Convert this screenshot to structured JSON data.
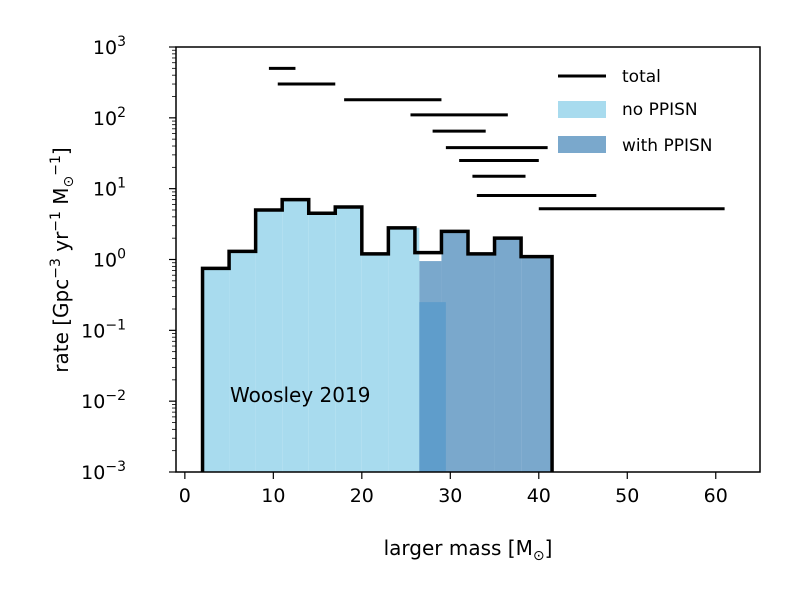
{
  "chart_data": {
    "type": "histogram",
    "xlabel": "larger mass [M",
    "xlabel_sub": "⊙",
    "xlabel_close": "]",
    "ylabel": "rate [Gpc",
    "ylabel_sup1": "−3",
    "ylabel_mid": " yr",
    "ylabel_sup2": "−1",
    "ylabel_end": " M",
    "ylabel_sub": "⊙",
    "ylabel_sup3": "−1",
    "ylabel_close": "]",
    "xlim": [
      -1,
      65
    ],
    "ylim": [
      0.001,
      1000
    ],
    "yscale": "log",
    "x_ticks": [
      0,
      10,
      20,
      30,
      40,
      50,
      60
    ],
    "y_ticks": [
      {
        "exp": -3,
        "base": "10",
        "sup": "−3"
      },
      {
        "exp": -2,
        "base": "10",
        "sup": "−2"
      },
      {
        "exp": -1,
        "base": "10",
        "sup": "−1"
      },
      {
        "exp": 0,
        "base": "10",
        "sup": "0"
      },
      {
        "exp": 1,
        "base": "10",
        "sup": "1"
      },
      {
        "exp": 2,
        "base": "10",
        "sup": "2"
      },
      {
        "exp": 3,
        "base": "10",
        "sup": "3"
      }
    ],
    "annotation": "Woosley 2019",
    "colors": {
      "no_ppisn": "#a8dbee",
      "with_ppisn": "#7aa8cc",
      "overlap": "#5f9dcb",
      "total": "#000000"
    },
    "legend": [
      {
        "label": "total",
        "kind": "line"
      },
      {
        "label": "no PPISN",
        "kind": "patch",
        "color": "#a8dbee"
      },
      {
        "label": "with PPISN",
        "kind": "patch",
        "color": "#7aa8cc"
      }
    ],
    "series": [
      {
        "name": "total",
        "bin_edges": [
          2,
          5,
          8,
          11,
          14,
          17,
          20,
          23,
          26,
          29,
          32,
          35,
          38,
          41.5
        ],
        "values": [
          0.75,
          1.3,
          5.0,
          7.0,
          4.5,
          5.5,
          1.2,
          2.8,
          1.25,
          2.5,
          1.2,
          2.0,
          1.1
        ]
      },
      {
        "name": "no PPISN",
        "bin_edges": [
          2,
          5,
          8,
          11,
          14,
          17,
          20,
          23,
          26.5,
          29.5
        ],
        "values": [
          0.75,
          1.3,
          5.0,
          7.0,
          4.5,
          5.5,
          1.2,
          2.8,
          0.25
        ]
      },
      {
        "name": "with PPISN",
        "bin_edges": [
          26.5,
          29,
          32,
          35,
          38,
          41.5
        ],
        "values": [
          0.95,
          2.5,
          1.2,
          2.0,
          1.1
        ]
      }
    ],
    "horizontal_segments": [
      {
        "x1": 9.5,
        "x2": 12.5,
        "y": 500
      },
      {
        "x1": 10.5,
        "x2": 17,
        "y": 300
      },
      {
        "x1": 18,
        "x2": 29,
        "y": 180
      },
      {
        "x1": 25.5,
        "x2": 36.5,
        "y": 110
      },
      {
        "x1": 28,
        "x2": 34,
        "y": 65
      },
      {
        "x1": 29.5,
        "x2": 41,
        "y": 38
      },
      {
        "x1": 31,
        "x2": 40,
        "y": 25
      },
      {
        "x1": 32.5,
        "x2": 38.5,
        "y": 15
      },
      {
        "x1": 33,
        "x2": 46.5,
        "y": 8
      },
      {
        "x1": 40,
        "x2": 61,
        "y": 5.2
      }
    ]
  }
}
